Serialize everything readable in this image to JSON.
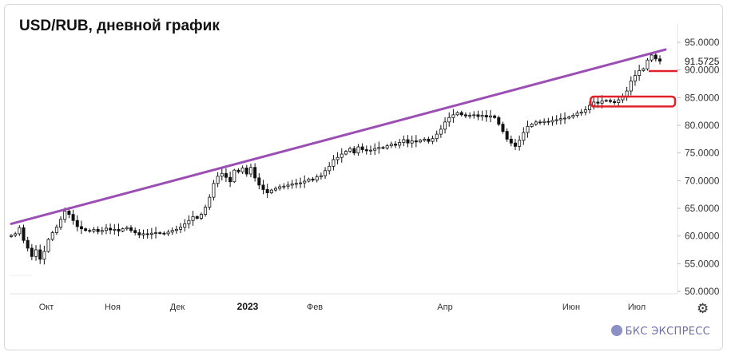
{
  "chart_data": {
    "type": "candlestick",
    "title": "USD/RUB, дневной график",
    "ylim": [
      50,
      95
    ],
    "y_ticks": [
      "95.0000",
      "90.0000",
      "85.0000",
      "80.0000",
      "75.0000",
      "70.0000",
      "65.0000",
      "60.0000",
      "55.0000",
      "50.0000"
    ],
    "x_ticks": [
      {
        "label": "Окт",
        "bold": false
      },
      {
        "label": "Ноя",
        "bold": false
      },
      {
        "label": "Дек",
        "bold": false
      },
      {
        "label": "2023",
        "bold": true
      },
      {
        "label": "Фев",
        "bold": false
      },
      {
        "label": "Апр",
        "bold": false
      },
      {
        "label": "Июн",
        "bold": false
      },
      {
        "label": "Июл",
        "bold": false
      }
    ],
    "last_price": "91.5725",
    "series": [
      {
        "values": [
          60.1,
          60.4,
          61.5,
          59.2,
          57.8,
          56.3,
          57.5,
          55.8,
          57.2,
          59.4,
          60.6,
          61.6,
          63.0,
          64.5,
          63.9,
          62.8,
          61.7,
          61.3,
          61.0,
          60.9,
          61.2,
          60.8,
          61.0,
          61.4,
          61.1,
          61.2,
          60.9,
          61.3,
          61.5,
          61.0,
          60.6,
          60.2,
          60.4,
          60.3,
          60.5,
          60.6,
          60.5,
          60.4,
          60.7,
          61.0,
          61.2,
          61.6,
          62.2,
          62.8,
          63.5,
          63.2,
          63.9,
          65.2,
          67.0,
          69.5,
          70.8,
          71.3,
          70.6,
          69.8,
          71.9,
          71.6,
          72.3,
          71.2,
          72.4,
          70.5,
          69.2,
          68.4,
          67.8,
          68.3,
          68.6,
          68.9,
          69.0,
          69.2,
          69.4,
          69.5,
          69.6,
          69.9,
          70.3,
          70.1,
          70.7,
          70.9,
          71.8,
          72.6,
          73.8,
          74.2,
          74.8,
          75.3,
          75.8,
          75.0,
          76.1,
          75.6,
          75.4,
          75.5,
          75.8,
          76.0,
          75.9,
          76.3,
          76.6,
          76.4,
          76.9,
          77.4,
          76.8,
          77.2,
          77.0,
          77.3,
          77.5,
          77.1,
          77.6,
          78.4,
          79.3,
          80.6,
          81.4,
          81.9,
          82.3,
          81.9,
          81.7,
          81.8,
          81.9,
          81.6,
          81.8,
          81.5,
          81.7,
          81.4,
          80.2,
          78.9,
          77.5,
          76.8,
          76.2,
          77.3,
          78.7,
          79.8,
          80.2,
          80.6,
          80.5,
          80.7,
          80.6,
          80.9,
          81.0,
          81.2,
          81.3,
          81.5,
          81.8,
          82.2,
          82.4,
          82.8,
          83.6,
          84.2,
          84.0,
          84.4,
          84.5,
          84.3,
          84.1,
          84.6,
          85.1,
          86.2,
          88.0,
          89.0,
          89.9,
          90.2,
          91.8,
          92.7,
          92.0,
          91.6
        ]
      },
      {
        "name": "trend",
        "values": [
          62.2,
          93.7
        ]
      }
    ]
  },
  "highlights": {
    "line_color": "#9b4fb4",
    "box_color": "#e0202a"
  },
  "footer": {
    "brand": "БКС ЭКСПРЕСС",
    "settings_icon": "gear-icon"
  }
}
